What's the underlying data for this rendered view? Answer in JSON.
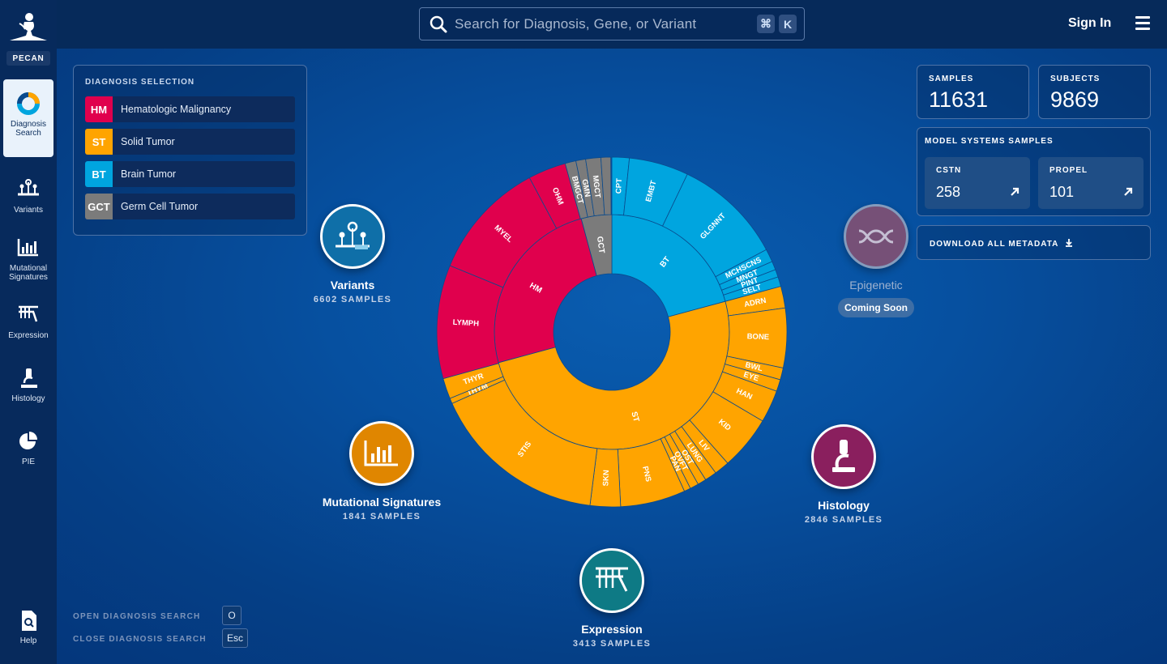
{
  "app": {
    "brand": "PECAN"
  },
  "search": {
    "placeholder": "Search for Diagnosis, Gene, or Variant",
    "kbd_cmd": "⌘",
    "kbd_key": "K"
  },
  "header": {
    "sign_in": "Sign In"
  },
  "sidebar": {
    "items": [
      {
        "label": "Diagnosis Search",
        "icon": "diagnosis-search-icon"
      },
      {
        "label": "Variants",
        "icon": "variants-icon"
      },
      {
        "label": "Mutational Signatures",
        "icon": "mutational-signatures-icon"
      },
      {
        "label": "Expression",
        "icon": "expression-icon"
      },
      {
        "label": "Histology",
        "icon": "histology-icon"
      },
      {
        "label": "PIE",
        "icon": "pie-icon"
      }
    ],
    "help": "Help"
  },
  "diagnosis_selection": {
    "title": "DIAGNOSIS SELECTION",
    "items": [
      {
        "code": "HM",
        "label": "Hematologic Malignancy",
        "color": "#e0004d"
      },
      {
        "code": "ST",
        "label": "Solid Tumor",
        "color": "#ffa400"
      },
      {
        "code": "BT",
        "label": "Brain Tumor",
        "color": "#00a5df"
      },
      {
        "code": "GCT",
        "label": "Germ Cell Tumor",
        "color": "#7b7b7b"
      }
    ]
  },
  "shortcuts": {
    "open_label": "OPEN DIAGNOSIS SEARCH",
    "open_key": "O",
    "close_label": "CLOSE DIAGNOSIS SEARCH",
    "close_key": "Esc"
  },
  "stats": {
    "samples_label": "SAMPLES",
    "samples_value": "11631",
    "subjects_label": "SUBJECTS",
    "subjects_value": "9869",
    "model_title": "MODEL SYSTEMS SAMPLES",
    "cstn_label": "CSTN",
    "cstn_value": "258",
    "propel_label": "PROPEL",
    "propel_value": "101",
    "download": "DOWNLOAD ALL METADATA"
  },
  "features": {
    "variants": {
      "name": "Variants",
      "count": "6602 SAMPLES",
      "color": "#0f6fa8"
    },
    "mutational": {
      "name": "Mutational Signatures",
      "count": "1841 SAMPLES",
      "color": "#e08600"
    },
    "expression": {
      "name": "Expression",
      "count": "3413 SAMPLES",
      "color": "#0e7a85"
    },
    "histology": {
      "name": "Histology",
      "count": "2846 SAMPLES",
      "color": "#8a1f5e"
    },
    "epigenetic": {
      "name": "Epigenetic",
      "badge": "Coming Soon",
      "color": "#8a5070"
    }
  },
  "chart_data": {
    "type": "sunburst",
    "inner": [
      {
        "label": "BT",
        "color": "#00a5df",
        "share": 0.208
      },
      {
        "label": "ST",
        "color": "#ffa400",
        "share": 0.5
      },
      {
        "label": "HM",
        "color": "#e0004d",
        "share": 0.25
      },
      {
        "label": "GCT",
        "color": "#7b7b7b",
        "share": 0.042
      }
    ],
    "outer": [
      {
        "label": "CPT",
        "color": "#00a5df",
        "share": 0.016,
        "show": true
      },
      {
        "label": "EMBT",
        "color": "#00a5df",
        "share": 0.055,
        "show": true
      },
      {
        "label": "GLGNNT",
        "color": "#00a5df",
        "share": 0.101,
        "show": true
      },
      {
        "label": "MCHSCNS",
        "color": "#00a5df",
        "share": 0.012,
        "show": true
      },
      {
        "label": "MNGT",
        "color": "#00a5df",
        "share": 0.008,
        "show": true
      },
      {
        "label": "PINT",
        "color": "#00a5df",
        "share": 0.007,
        "show": true
      },
      {
        "label": "SELT",
        "color": "#00a5df",
        "share": 0.009,
        "show": true
      },
      {
        "label": "ADRN",
        "color": "#ffa400",
        "share": 0.02,
        "show": true
      },
      {
        "label": "BONE",
        "color": "#ffa400",
        "share": 0.055,
        "show": true
      },
      {
        "label": "BWL",
        "color": "#ffa400",
        "share": 0.011,
        "show": true
      },
      {
        "label": "EYE",
        "color": "#ffa400",
        "share": 0.011,
        "show": true
      },
      {
        "label": "HAN",
        "color": "#ffa400",
        "share": 0.03,
        "show": true
      },
      {
        "label": "KID",
        "color": "#ffa400",
        "share": 0.05,
        "show": true
      },
      {
        "label": "LIV",
        "color": "#ffa400",
        "share": 0.014,
        "show": true
      },
      {
        "label": "LUNG",
        "color": "#ffa400",
        "share": 0.011,
        "show": true
      },
      {
        "label": "OST",
        "color": "#ffa400",
        "share": 0.008,
        "show": true
      },
      {
        "label": "OVFT",
        "color": "#ffa400",
        "share": 0.008,
        "show": true
      },
      {
        "label": "PAN",
        "color": "#ffa400",
        "share": 0.006,
        "show": true
      },
      {
        "label": "PNS",
        "color": "#ffa400",
        "share": 0.06,
        "show": true
      },
      {
        "label": "SKN",
        "color": "#ffa400",
        "share": 0.028,
        "show": true
      },
      {
        "label": "STIS",
        "color": "#ffa400",
        "share": 0.163,
        "show": true
      },
      {
        "label": "THYM",
        "color": "#ffa400",
        "share": 0.005,
        "show": true
      },
      {
        "label": "THYR",
        "color": "#ffa400",
        "share": 0.019,
        "show": true
      },
      {
        "label": "LYMPH",
        "color": "#e0004d",
        "share": 0.105,
        "show": true
      },
      {
        "label": "MYEL",
        "color": "#e0004d",
        "share": 0.11,
        "show": true
      },
      {
        "label": "OHM",
        "color": "#e0004d",
        "share": 0.035,
        "show": true
      },
      {
        "label": "BMGCT",
        "color": "#7b7b7b",
        "share": 0.01,
        "show": true
      },
      {
        "label": "GMN",
        "color": "#7b7b7b",
        "share": 0.009,
        "show": true
      },
      {
        "label": "MGCT",
        "color": "#7b7b7b",
        "share": 0.014,
        "show": true
      },
      {
        "label": "",
        "color": "#7b7b7b",
        "share": 0.009,
        "show": false
      }
    ]
  }
}
